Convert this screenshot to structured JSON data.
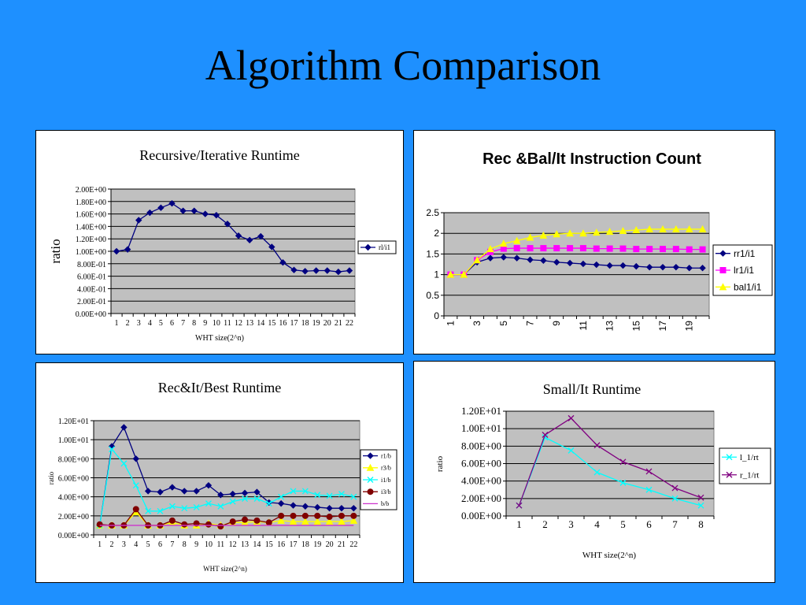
{
  "slide": {
    "title": "Algorithm Comparison",
    "background": "#1e90ff"
  },
  "chart_data": [
    {
      "type": "line",
      "title": "Recursive/Iterative Runtime",
      "xlabel": "WHT size(2^n)",
      "ylabel": "ratio",
      "categories": [
        "1",
        "2",
        "3",
        "4",
        "5",
        "6",
        "7",
        "8",
        "9",
        "10",
        "11",
        "12",
        "13",
        "14",
        "15",
        "16",
        "17",
        "18",
        "19",
        "20",
        "21",
        "22"
      ],
      "ylim": [
        0,
        2.0
      ],
      "yticks": [
        "0.00E+00",
        "2.00E-01",
        "4.00E-01",
        "6.00E-01",
        "8.00E-01",
        "1.00E+00",
        "1.20E+00",
        "1.40E+00",
        "1.60E+00",
        "1.80E+00",
        "2.00E+00"
      ],
      "grid": true,
      "legend_position": "right",
      "series": [
        {
          "name": "rl/i1",
          "color": "#000080",
          "marker": "diamond",
          "values": [
            1.0,
            1.03,
            1.5,
            1.62,
            1.7,
            1.77,
            1.65,
            1.65,
            1.6,
            1.58,
            1.44,
            1.25,
            1.18,
            1.24,
            1.07,
            0.82,
            0.7,
            0.68,
            0.69,
            0.69,
            0.67,
            0.69
          ]
        }
      ]
    },
    {
      "type": "line",
      "title": "Rec &Bal/It Instruction Count",
      "categories": [
        "1",
        "2",
        "3",
        "4",
        "5",
        "6",
        "7",
        "8",
        "9",
        "10",
        "11",
        "12",
        "13",
        "14",
        "15",
        "16",
        "17",
        "18",
        "19",
        "20"
      ],
      "xtick_labels": [
        "1",
        "",
        "3",
        "",
        "5",
        "",
        "7",
        "",
        "9",
        "",
        "11",
        "",
        "13",
        "",
        "15",
        "",
        "17",
        "",
        "19",
        ""
      ],
      "ylim": [
        0,
        2.5
      ],
      "yticks": [
        "0",
        "0.5",
        "1",
        "1.5",
        "2",
        "2.5"
      ],
      "grid": true,
      "legend_position": "right",
      "series": [
        {
          "name": "rr1/i1",
          "color": "#000080",
          "marker": "diamond",
          "values": [
            1.0,
            1.0,
            1.3,
            1.4,
            1.42,
            1.4,
            1.36,
            1.34,
            1.3,
            1.28,
            1.26,
            1.24,
            1.22,
            1.22,
            1.2,
            1.18,
            1.18,
            1.18,
            1.16,
            1.16
          ]
        },
        {
          "name": "lr1/i1",
          "color": "#ff00ff",
          "marker": "square",
          "values": [
            1.0,
            1.0,
            1.35,
            1.55,
            1.63,
            1.64,
            1.64,
            1.64,
            1.64,
            1.64,
            1.64,
            1.63,
            1.63,
            1.63,
            1.62,
            1.62,
            1.62,
            1.62,
            1.61,
            1.61
          ]
        },
        {
          "name": "bal1/i1",
          "color": "#ffff00",
          "marker": "triangle",
          "values": [
            1.0,
            1.0,
            1.35,
            1.62,
            1.75,
            1.82,
            1.9,
            1.95,
            1.98,
            2.0,
            2.0,
            2.02,
            2.04,
            2.06,
            2.08,
            2.1,
            2.1,
            2.1,
            2.1,
            2.1
          ]
        }
      ]
    },
    {
      "type": "line",
      "title": "Rec&It/Best Runtime",
      "xlabel": "WHT size(2^n)",
      "ylabel": "ratio",
      "categories": [
        "1",
        "2",
        "3",
        "4",
        "5",
        "6",
        "7",
        "8",
        "9",
        "10",
        "11",
        "12",
        "13",
        "14",
        "15",
        "16",
        "17",
        "18",
        "19",
        "20",
        "21",
        "22"
      ],
      "ylim": [
        0,
        12
      ],
      "yticks": [
        "0.00E+00",
        "2.00E+00",
        "4.00E+00",
        "6.00E+00",
        "8.00E+00",
        "1.00E+01",
        "1.20E+01"
      ],
      "grid": true,
      "legend_position": "right",
      "series": [
        {
          "name": "r1/b",
          "color": "#000080",
          "marker": "diamond",
          "values": [
            1.0,
            9.3,
            11.3,
            8.0,
            4.6,
            4.5,
            5.0,
            4.6,
            4.6,
            5.2,
            4.2,
            4.3,
            4.4,
            4.5,
            3.4,
            3.3,
            3.1,
            3.0,
            2.9,
            2.8,
            2.8,
            2.8
          ]
        },
        {
          "name": "r3/b",
          "color": "#ffff00",
          "marker": "triangle",
          "values": [
            1.0,
            1.0,
            1.0,
            2.4,
            1.0,
            1.0,
            1.3,
            1.0,
            1.0,
            1.2,
            1.0,
            1.3,
            1.3,
            1.4,
            1.3,
            1.5,
            1.4,
            1.4,
            1.4,
            1.4,
            1.4,
            1.5
          ]
        },
        {
          "name": "i1/b",
          "color": "#00ffff",
          "marker": "x",
          "values": [
            1.0,
            9.0,
            7.5,
            5.2,
            2.5,
            2.5,
            3.0,
            2.8,
            2.9,
            3.3,
            3.0,
            3.5,
            3.8,
            3.8,
            3.3,
            4.0,
            4.6,
            4.6,
            4.2,
            4.1,
            4.3,
            4.0
          ]
        },
        {
          "name": "i3/b",
          "color": "#800000",
          "marker": "circle",
          "values": [
            1.1,
            1.0,
            1.0,
            2.7,
            1.0,
            1.0,
            1.5,
            1.1,
            1.2,
            1.1,
            0.9,
            1.4,
            1.6,
            1.5,
            1.3,
            2.0,
            2.0,
            2.0,
            2.0,
            1.9,
            2.0,
            2.0
          ]
        },
        {
          "name": "b/b",
          "color": "#cc33cc",
          "marker": "none",
          "values": [
            1,
            1,
            1,
            1,
            1,
            1,
            1,
            1,
            1,
            1,
            1,
            1,
            1,
            1,
            1,
            1,
            1,
            1,
            1,
            1,
            1,
            1
          ]
        }
      ]
    },
    {
      "type": "line",
      "title": "Small/It Runtime",
      "xlabel": "WHT size(2^n)",
      "ylabel": "ratio",
      "categories": [
        "1",
        "2",
        "3",
        "4",
        "5",
        "6",
        "7",
        "8"
      ],
      "ylim": [
        0,
        12
      ],
      "yticks": [
        "0.00E+00",
        "2.00E+00",
        "4.00E+00",
        "6.00E+00",
        "8.00E+00",
        "1.00E+01",
        "1.20E+01"
      ],
      "grid": true,
      "legend_position": "right",
      "series": [
        {
          "name": "l_1/rt",
          "color": "#00ffff",
          "marker": "x",
          "values": [
            1.2,
            9.0,
            7.5,
            5.0,
            3.8,
            3.0,
            2.0,
            1.2
          ]
        },
        {
          "name": "r_1/rt",
          "color": "#800080",
          "marker": "x",
          "values": [
            1.2,
            9.3,
            11.2,
            8.1,
            6.2,
            5.1,
            3.2,
            2.1
          ]
        }
      ]
    }
  ]
}
